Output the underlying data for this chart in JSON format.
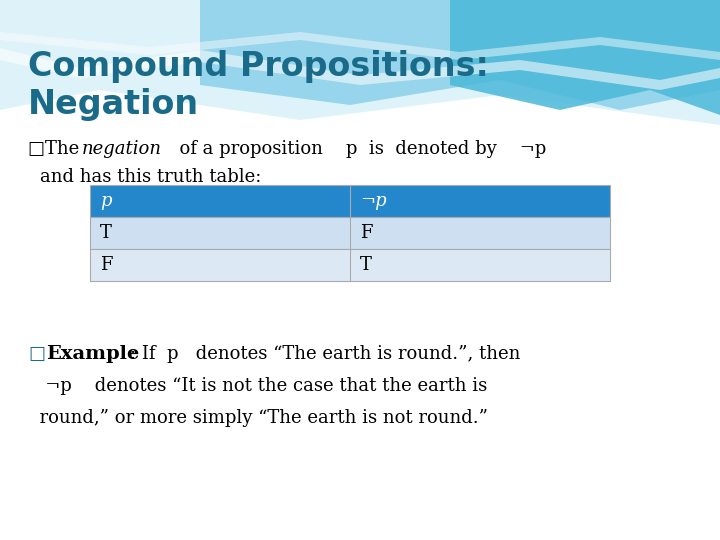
{
  "title_line1": "Compound Propositions:",
  "title_line2": "Negation",
  "title_color": "#1a6b8a",
  "bg_color": "#ffffff",
  "body_text_color": "#000000",
  "table_header_bg": "#2487cc",
  "table_header_text": "#ffffff",
  "table_row1_bg": "#cddff0",
  "table_row2_bg": "#dce9f5",
  "table_border_color": "#aaaaaa",
  "col1_header": "p",
  "col2_header": "¬p",
  "row1_col1": "T",
  "row1_col2": "F",
  "row2_col1": "F",
  "row2_col2": "T"
}
